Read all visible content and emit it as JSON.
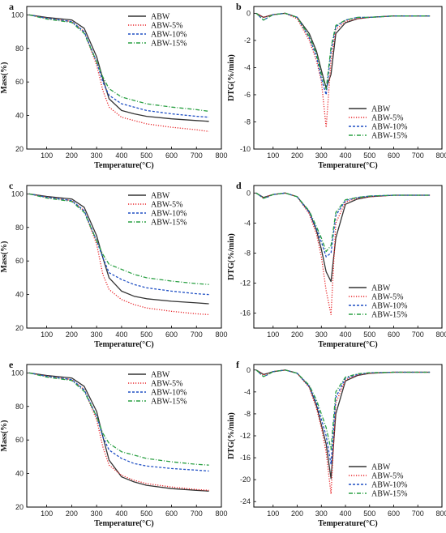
{
  "series_names": [
    "ABW",
    "ABW-5%",
    "ABW-10%",
    "ABW-15%"
  ],
  "series_colors": [
    "#333333",
    "#e8262a",
    "#1f4fc4",
    "#2aa043"
  ],
  "series_dash": [
    "solid",
    "dot",
    "dash",
    "dashdot"
  ],
  "chart_data": [
    {
      "panel": "a",
      "type": "line",
      "grid": false,
      "legend": "top-right",
      "xlabel": "Temperature(°C)",
      "ylabel": "Mass(%)",
      "xlim": [
        20,
        800
      ],
      "ylim": [
        20,
        105
      ],
      "xticks": [
        100,
        200,
        300,
        400,
        500,
        600,
        700,
        800
      ],
      "yticks": [
        20,
        40,
        60,
        80,
        100
      ],
      "x": [
        30,
        100,
        200,
        250,
        300,
        325,
        350,
        400,
        450,
        500,
        600,
        700,
        750
      ],
      "series": [
        {
          "name": "ABW",
          "values": [
            100,
            98.5,
            97,
            92,
            75,
            62,
            50,
            43,
            41,
            39.5,
            38,
            37,
            36.5
          ]
        },
        {
          "name": "ABW-5%",
          "values": [
            100,
            98,
            96,
            90,
            70,
            55,
            45,
            39,
            37,
            35,
            33,
            31.5,
            30.5
          ]
        },
        {
          "name": "ABW-10%",
          "values": [
            100,
            98,
            96,
            90,
            72,
            60,
            52,
            47,
            45,
            43,
            41,
            39.5,
            39
          ]
        },
        {
          "name": "ABW-15%",
          "values": [
            100,
            97.5,
            95.5,
            89,
            72,
            63,
            56,
            51,
            49,
            47,
            45,
            43.5,
            42.5
          ]
        }
      ]
    },
    {
      "panel": "b",
      "type": "line",
      "grid": false,
      "legend": "bottom-right",
      "xlabel": "Temperature(°C)",
      "ylabel": "DTG(%/min)",
      "xlim": [
        20,
        800
      ],
      "ylim": [
        -10,
        0.5
      ],
      "xticks": [
        100,
        200,
        300,
        400,
        500,
        600,
        700,
        800
      ],
      "yticks": [
        -10,
        -8,
        -6,
        -4,
        -2,
        0
      ],
      "x": [
        30,
        60,
        80,
        100,
        150,
        200,
        250,
        280,
        300,
        320,
        340,
        360,
        400,
        450,
        500,
        600,
        750
      ],
      "series": [
        {
          "name": "ABW",
          "values": [
            0,
            -0.3,
            -0.2,
            -0.1,
            0,
            -0.3,
            -1.5,
            -2.8,
            -4.2,
            -5.5,
            -4.5,
            -1.5,
            -0.7,
            -0.4,
            -0.3,
            -0.2,
            -0.2
          ]
        },
        {
          "name": "ABW-5%",
          "values": [
            0,
            -0.3,
            -0.2,
            -0.1,
            0,
            -0.4,
            -2,
            -3.5,
            -5,
            -8.4,
            -3.5,
            -1.2,
            -0.6,
            -0.4,
            -0.3,
            -0.2,
            -0.2
          ]
        },
        {
          "name": "ABW-10%",
          "values": [
            0,
            -0.5,
            -0.3,
            -0.1,
            0,
            -0.3,
            -1.8,
            -3.2,
            -4.8,
            -6,
            -2.8,
            -1,
            -0.5,
            -0.3,
            -0.3,
            -0.2,
            -0.2
          ]
        },
        {
          "name": "ABW-15%",
          "values": [
            0,
            -0.5,
            -0.3,
            -0.1,
            0,
            -0.3,
            -1.7,
            -3,
            -4.5,
            -5.6,
            -2.5,
            -0.9,
            -0.5,
            -0.3,
            -0.3,
            -0.2,
            -0.2
          ]
        }
      ]
    },
    {
      "panel": "c",
      "type": "line",
      "grid": false,
      "legend": "top-right",
      "xlabel": "Temperature(°C)",
      "ylabel": "Mass(%)",
      "xlim": [
        20,
        800
      ],
      "ylim": [
        20,
        105
      ],
      "xticks": [
        100,
        200,
        300,
        400,
        500,
        600,
        700,
        800
      ],
      "yticks": [
        20,
        40,
        60,
        80,
        100
      ],
      "x": [
        30,
        100,
        200,
        250,
        300,
        325,
        350,
        400,
        450,
        500,
        600,
        700,
        750
      ],
      "series": [
        {
          "name": "ABW",
          "values": [
            100,
            98.5,
            97,
            92,
            75,
            62,
            50,
            42,
            39,
            37.5,
            36,
            35,
            34.5
          ]
        },
        {
          "name": "ABW-5%",
          "values": [
            100,
            98,
            96,
            90,
            70,
            52,
            43,
            37,
            34,
            32,
            30,
            28.5,
            28
          ]
        },
        {
          "name": "ABW-10%",
          "values": [
            100,
            98,
            96,
            90,
            72,
            62,
            53,
            49,
            46,
            44,
            42,
            40.5,
            40
          ]
        },
        {
          "name": "ABW-15%",
          "values": [
            100,
            97.5,
            95.5,
            89,
            72,
            64,
            58,
            55,
            52,
            50,
            48,
            46.5,
            46
          ]
        }
      ]
    },
    {
      "panel": "d",
      "type": "line",
      "grid": false,
      "legend": "bottom-right",
      "xlabel": "Temperature(°C)",
      "ylabel": "DTG(%/min)",
      "xlim": [
        20,
        800
      ],
      "ylim": [
        -18,
        1
      ],
      "xticks": [
        100,
        200,
        300,
        400,
        500,
        600,
        700,
        800
      ],
      "yticks": [
        -16,
        -12,
        -8,
        -4,
        0
      ],
      "x": [
        30,
        60,
        80,
        100,
        150,
        200,
        250,
        280,
        300,
        320,
        340,
        360,
        400,
        450,
        500,
        600,
        750
      ],
      "series": [
        {
          "name": "ABW",
          "values": [
            0,
            -0.6,
            -0.4,
            -0.2,
            0,
            -0.5,
            -2.5,
            -5,
            -7.5,
            -10.5,
            -11.8,
            -6,
            -1.5,
            -0.8,
            -0.5,
            -0.3,
            -0.3
          ]
        },
        {
          "name": "ABW-5%",
          "values": [
            0,
            -0.7,
            -0.4,
            -0.2,
            0,
            -0.5,
            -2.8,
            -5.5,
            -8.5,
            -13,
            -16.2,
            -4,
            -1.2,
            -0.7,
            -0.5,
            -0.3,
            -0.3
          ]
        },
        {
          "name": "ABW-10%",
          "values": [
            0,
            -0.7,
            -0.5,
            -0.2,
            0,
            -0.5,
            -2.6,
            -4.8,
            -6.5,
            -8.5,
            -8,
            -3,
            -1,
            -0.6,
            -0.4,
            -0.3,
            -0.3
          ]
        },
        {
          "name": "ABW-15%",
          "values": [
            0,
            -0.7,
            -0.5,
            -0.2,
            0,
            -0.5,
            -2.4,
            -4.5,
            -6,
            -7.8,
            -7,
            -2.6,
            -0.9,
            -0.6,
            -0.4,
            -0.3,
            -0.3
          ]
        }
      ]
    },
    {
      "panel": "e",
      "type": "line",
      "grid": false,
      "legend": "top-right",
      "xlabel": "Temperature(°C)",
      "ylabel": "Mass(%)",
      "xlim": [
        20,
        800
      ],
      "ylim": [
        20,
        105
      ],
      "xticks": [
        100,
        200,
        300,
        400,
        500,
        600,
        700,
        800
      ],
      "yticks": [
        20,
        40,
        60,
        80,
        100
      ],
      "x": [
        30,
        100,
        200,
        250,
        300,
        325,
        350,
        400,
        450,
        500,
        600,
        700,
        750
      ],
      "series": [
        {
          "name": "ABW",
          "values": [
            100,
            98.5,
            97,
            92,
            77,
            62,
            48,
            38,
            35,
            33,
            31,
            30,
            29.5
          ]
        },
        {
          "name": "ABW-5%",
          "values": [
            100,
            98,
            96,
            90,
            72,
            56,
            45,
            39,
            36,
            34,
            32,
            30.5,
            30
          ]
        },
        {
          "name": "ABW-10%",
          "values": [
            100,
            98,
            96,
            90,
            74,
            62,
            54,
            49,
            46,
            44.5,
            43,
            42,
            41.5
          ]
        },
        {
          "name": "ABW-15%",
          "values": [
            100,
            97.5,
            95.5,
            89,
            74,
            64,
            58,
            53,
            51,
            49,
            47,
            45.5,
            45
          ]
        }
      ]
    },
    {
      "panel": "f",
      "type": "line",
      "grid": false,
      "legend": "bottom-right",
      "xlabel": "Temperature(°C)",
      "ylabel": "DTG(%/min)",
      "xlim": [
        20,
        800
      ],
      "ylim": [
        -25,
        1
      ],
      "xticks": [
        100,
        200,
        300,
        400,
        500,
        600,
        700,
        800
      ],
      "yticks": [
        -24,
        -20,
        -16,
        -12,
        -8,
        -4,
        0
      ],
      "x": [
        30,
        60,
        80,
        100,
        150,
        200,
        250,
        280,
        300,
        320,
        340,
        360,
        400,
        450,
        500,
        600,
        750
      ],
      "series": [
        {
          "name": "ABW",
          "values": [
            0,
            -0.8,
            -0.6,
            -0.3,
            0,
            -0.6,
            -3,
            -6.5,
            -10,
            -13.5,
            -19.8,
            -8,
            -2,
            -1,
            -0.6,
            -0.4,
            -0.4
          ]
        },
        {
          "name": "ABW-5%",
          "values": [
            0,
            -0.9,
            -0.7,
            -0.3,
            0,
            -0.6,
            -3.2,
            -7,
            -10.5,
            -15,
            -22.6,
            -6,
            -1.8,
            -0.9,
            -0.6,
            -0.4,
            -0.4
          ]
        },
        {
          "name": "ABW-10%",
          "values": [
            0,
            -1.2,
            -0.8,
            -0.3,
            0,
            -0.6,
            -3,
            -6,
            -9,
            -12,
            -17.2,
            -5,
            -1.5,
            -0.8,
            -0.5,
            -0.4,
            -0.4
          ]
        },
        {
          "name": "ABW-15%",
          "values": [
            0,
            -1.2,
            -0.8,
            -0.3,
            0,
            -0.6,
            -2.8,
            -5.5,
            -8,
            -10.5,
            -14.5,
            -4,
            -1.3,
            -0.7,
            -0.5,
            -0.4,
            -0.4
          ]
        }
      ]
    }
  ]
}
